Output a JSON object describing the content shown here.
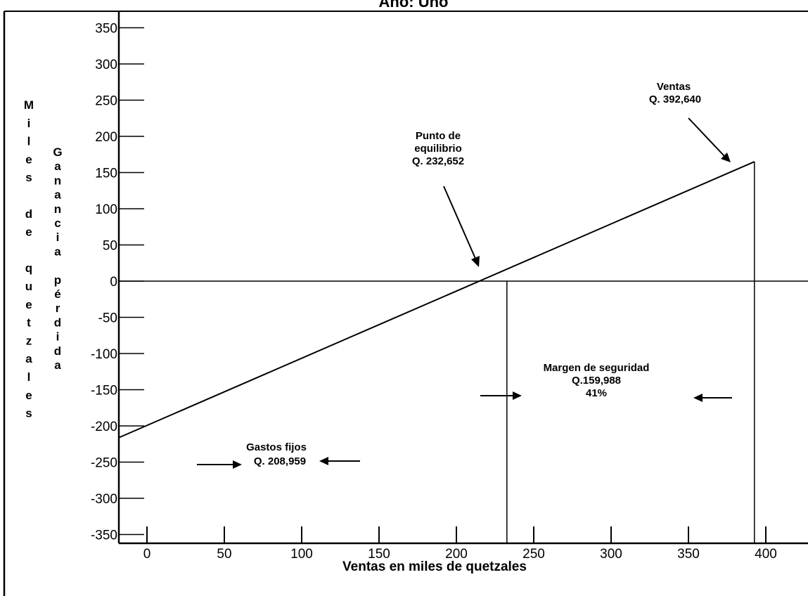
{
  "chart_data": {
    "type": "line",
    "title": "Año: Uno",
    "xlabel": "Ventas en miles de quetzales",
    "ylabel_outer": "Miles de quetzales",
    "ylabel_inner": "Ganancia pérdida",
    "x_ticks": [
      0,
      50,
      100,
      150,
      200,
      250,
      300,
      350,
      400
    ],
    "y_ticks": [
      350,
      300,
      250,
      200,
      150,
      100,
      50,
      0,
      -50,
      -100,
      -150,
      -200,
      -250,
      -300,
      -350
    ],
    "xlim": [
      -18,
      428
    ],
    "ylim": [
      -360,
      360
    ],
    "series": [
      {
        "x": [
          -18,
          392.64
        ],
        "y": [
          -216,
          165
        ]
      }
    ],
    "reference_lines": {
      "zero_line_y": 0,
      "breakeven_x": 232.652,
      "sales_x": 392.64
    },
    "annotations": {
      "punto_equilibrio": [
        "Punto de",
        "equilibrio",
        "Q. 232,652"
      ],
      "ventas": [
        "Ventas",
        "Q. 392,640"
      ],
      "margen": [
        "Margen de seguridad",
        "Q.159,988",
        "41%"
      ],
      "gastos_fijos": [
        "Gastos fijos",
        "Q. 208,959"
      ]
    },
    "grid": false,
    "legend": "none"
  }
}
